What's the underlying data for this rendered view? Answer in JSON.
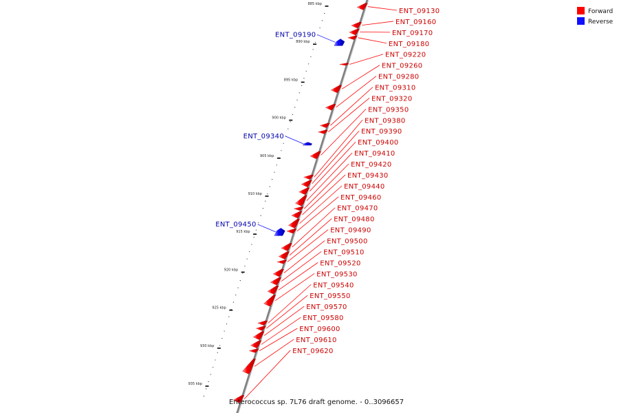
{
  "legend": {
    "items": [
      {
        "label": "Forward",
        "color": "#ff0000"
      },
      {
        "label": "Reverse",
        "color": "#1010ff"
      }
    ]
  },
  "caption": "Enterococcus sp. 7L76 draft genome. - 0..3096657",
  "scale": {
    "unit": "kbp",
    "ticks": [
      885,
      890,
      895,
      900,
      905,
      910,
      915,
      920,
      925,
      930,
      935
    ]
  },
  "colors": {
    "forward": "#ff0000",
    "reverse": "#1010ff",
    "backbone": "#808080"
  },
  "genes": [
    {
      "name": "ENT_09130",
      "strand": "forward",
      "start": 884.6,
      "end": 885.5
    },
    {
      "name": "ENT_09160",
      "strand": "forward",
      "start": 887.1,
      "end": 887.9
    },
    {
      "name": "ENT_09170",
      "strand": "forward",
      "start": 888.0,
      "end": 888.8
    },
    {
      "name": "ENT_09180",
      "strand": "forward",
      "start": 888.9,
      "end": 889.4
    },
    {
      "name": "ENT_09190",
      "strand": "reverse",
      "start": 889.3,
      "end": 890.2
    },
    {
      "name": "ENT_09220",
      "strand": "forward",
      "start": 892.5,
      "end": 892.8
    },
    {
      "name": "ENT_09260",
      "strand": "forward",
      "start": 895.4,
      "end": 896.4
    },
    {
      "name": "ENT_09280",
      "strand": "forward",
      "start": 897.9,
      "end": 898.7
    },
    {
      "name": "ENT_09310",
      "strand": "forward",
      "start": 900.4,
      "end": 901.0
    },
    {
      "name": "ENT_09320",
      "strand": "forward",
      "start": 901.3,
      "end": 901.8
    },
    {
      "name": "ENT_09340",
      "strand": "reverse",
      "start": 902.9,
      "end": 903.3
    },
    {
      "name": "ENT_09350",
      "strand": "forward",
      "start": 904.1,
      "end": 905.1
    },
    {
      "name": "ENT_09380",
      "strand": "forward",
      "start": 907.2,
      "end": 907.8
    },
    {
      "name": "ENT_09390",
      "strand": "forward",
      "start": 907.9,
      "end": 908.8
    },
    {
      "name": "ENT_09400",
      "strand": "forward",
      "start": 908.9,
      "end": 909.8
    },
    {
      "name": "ENT_09410",
      "strand": "forward",
      "start": 909.9,
      "end": 911.3
    },
    {
      "name": "ENT_09420",
      "strand": "forward",
      "start": 911.4,
      "end": 911.9
    },
    {
      "name": "ENT_09430",
      "strand": "forward",
      "start": 912.0,
      "end": 912.9
    },
    {
      "name": "ENT_09440",
      "strand": "forward",
      "start": 913.0,
      "end": 914.2
    },
    {
      "name": "ENT_09450",
      "strand": "reverse",
      "start": 914.2,
      "end": 915.2
    },
    {
      "name": "ENT_09460",
      "strand": "forward",
      "start": 914.3,
      "end": 914.9
    },
    {
      "name": "ENT_09470",
      "strand": "forward",
      "start": 916.2,
      "end": 917.2
    },
    {
      "name": "ENT_09480",
      "strand": "forward",
      "start": 917.3,
      "end": 918.3
    },
    {
      "name": "ENT_09490",
      "strand": "forward",
      "start": 918.4,
      "end": 918.9
    },
    {
      "name": "ENT_09500",
      "strand": "forward",
      "start": 919.6,
      "end": 920.6
    },
    {
      "name": "ENT_09510",
      "strand": "forward",
      "start": 920.7,
      "end": 921.7
    },
    {
      "name": "ENT_09520",
      "strand": "forward",
      "start": 921.8,
      "end": 922.9
    },
    {
      "name": "ENT_09530",
      "strand": "forward",
      "start": 923.0,
      "end": 924.5
    },
    {
      "name": "ENT_09540",
      "strand": "forward",
      "start": 926.4,
      "end": 927.0
    },
    {
      "name": "ENT_09550",
      "strand": "forward",
      "start": 927.1,
      "end": 927.7
    },
    {
      "name": "ENT_09570",
      "strand": "forward",
      "start": 927.8,
      "end": 928.9
    },
    {
      "name": "ENT_09580",
      "strand": "forward",
      "start": 929.0,
      "end": 930.0
    },
    {
      "name": "ENT_09600",
      "strand": "forward",
      "start": 930.1,
      "end": 930.6
    },
    {
      "name": "ENT_09610",
      "strand": "forward",
      "start": 931.4,
      "end": 933.4
    },
    {
      "name": "ENT_09620",
      "strand": "forward",
      "start": 936.2,
      "end": 937.2
    }
  ]
}
